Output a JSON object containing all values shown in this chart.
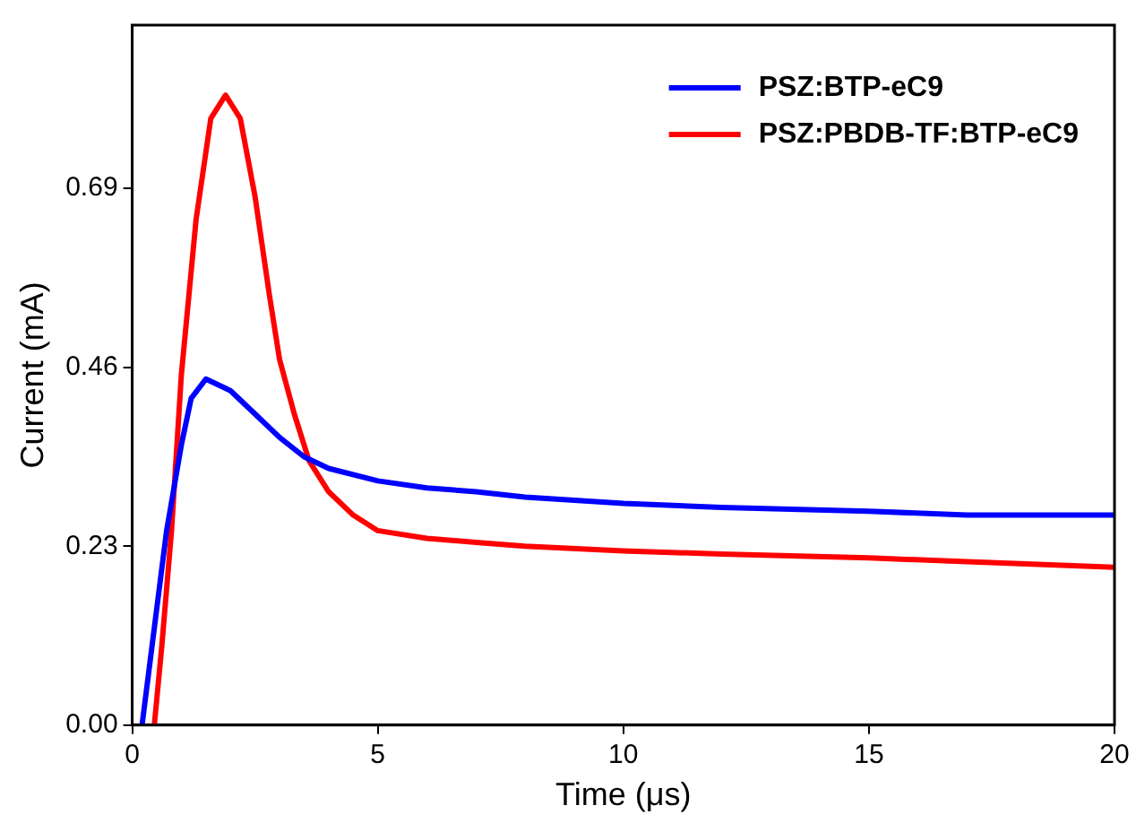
{
  "chart_data": {
    "type": "line",
    "xlabel": "Time (μs)",
    "ylabel": "Current (mA)",
    "xlim": [
      0,
      20
    ],
    "xticks": [
      0,
      5,
      10,
      15,
      20
    ],
    "ylim": [
      0,
      0.9
    ],
    "yticks": [
      {
        "value": 0,
        "label": "0.00"
      },
      0.23,
      0.46,
      0.69
    ],
    "grid": false,
    "legend": "top right",
    "series": [
      {
        "name": "PSZ:BTP-eC9",
        "color": "#0000ff",
        "x": [
          0.2,
          0.3,
          0.5,
          0.7,
          1.0,
          1.2,
          1.5,
          2,
          2.5,
          3,
          3.5,
          4,
          5,
          6,
          7,
          8,
          10,
          12,
          15,
          17,
          20
        ],
        "values": [
          0,
          0.05,
          0.15,
          0.25,
          0.36,
          0.42,
          0.445,
          0.43,
          0.4,
          0.37,
          0.345,
          0.33,
          0.314,
          0.305,
          0.3,
          0.293,
          0.285,
          0.28,
          0.275,
          0.27,
          0.27
        ]
      },
      {
        "name": "PSZ:PBDB-TF:BTP-eC9",
        "color": "#ff0000",
        "x": [
          0.45,
          0.6,
          0.8,
          1.0,
          1.3,
          1.6,
          1.9,
          2.2,
          2.5,
          2.8,
          3.0,
          3.3,
          3.6,
          4,
          4.5,
          5,
          6,
          7,
          8,
          10,
          12,
          15,
          17,
          20
        ],
        "values": [
          0,
          0.1,
          0.25,
          0.45,
          0.65,
          0.78,
          0.81,
          0.78,
          0.68,
          0.55,
          0.47,
          0.4,
          0.34,
          0.3,
          0.27,
          0.25,
          0.24,
          0.235,
          0.23,
          0.224,
          0.22,
          0.215,
          0.21,
          0.203
        ]
      }
    ]
  }
}
